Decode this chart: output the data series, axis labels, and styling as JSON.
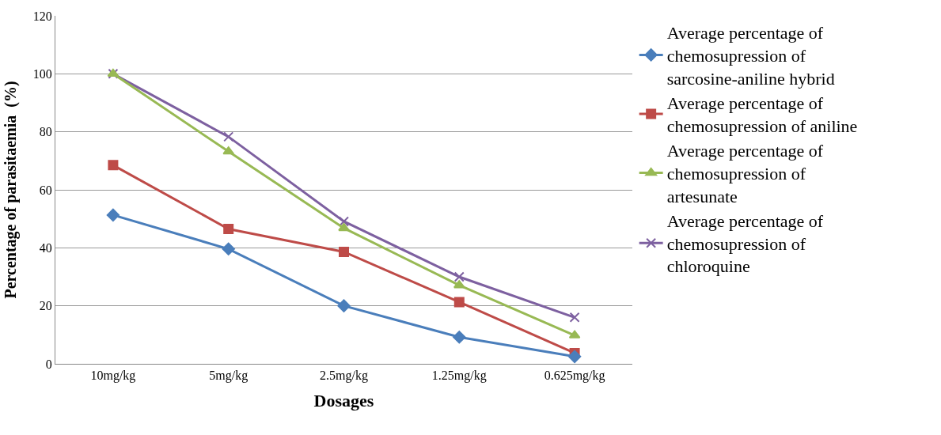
{
  "chart_data": {
    "type": "line",
    "xlabel": "Dosages",
    "ylabel": "Percentage of parasitaemia  (%)",
    "categories": [
      "10mg/kg",
      "5mg/kg",
      "2.5mg/kg",
      "1.25mg/kg",
      "0.625mg/kg"
    ],
    "series": [
      {
        "name": "Average percentage of chemosupression of sarcosine-aniline hybrid",
        "color": "#4a7ebb",
        "marker": "diamond",
        "values": [
          51.3,
          39.6,
          20,
          9.2,
          2.5
        ]
      },
      {
        "name": "Average percentage of chemosupression of aniline",
        "color": "#be4b48",
        "marker": "square",
        "values": [
          68.5,
          46.5,
          38.6,
          21.3,
          3.7
        ]
      },
      {
        "name": "Average percentage of chemosupression of artesunate",
        "color": "#98b954",
        "marker": "triangle",
        "values": [
          100,
          73.2,
          46.8,
          27.1,
          9.8
        ]
      },
      {
        "name": "Average percentage of chemosupression of chloroquine",
        "color": "#7d60a0",
        "marker": "cross",
        "values": [
          100,
          78.3,
          49.1,
          30,
          16
        ]
      }
    ],
    "ylim": [
      0,
      120
    ],
    "yticks": [
      0,
      20,
      40,
      60,
      80,
      100,
      120
    ],
    "grid": "y",
    "legend": "right",
    "line_style": "solid"
  }
}
